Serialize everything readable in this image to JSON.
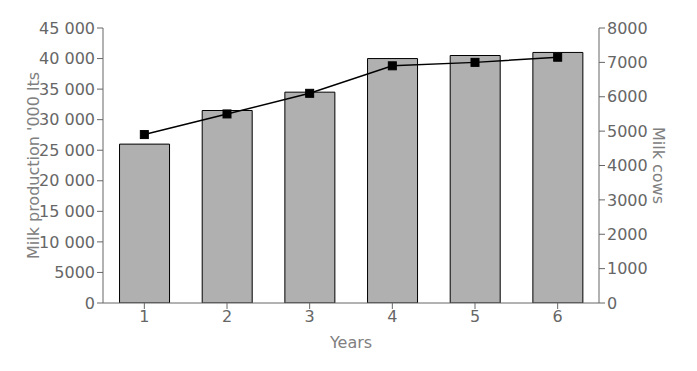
{
  "chart_data": {
    "type": "bar",
    "xlabel": "Years",
    "ylabel": "Milk production '000 lts",
    "y2label": "Milk cows",
    "categories": [
      "1",
      "2",
      "3",
      "4",
      "5",
      "6"
    ],
    "series": [
      {
        "type": "bar",
        "color": "#b0b0b0",
        "values": [
          26000,
          31500,
          34500,
          40000,
          40500,
          41000
        ]
      },
      {
        "type": "line",
        "color": "#000000",
        "marker": "square",
        "axis": "y2",
        "values": [
          4900,
          5500,
          6100,
          6900,
          7000,
          7150
        ]
      }
    ],
    "ylim": [
      0,
      45000
    ],
    "yticks": [
      0,
      5000,
      {
        "value": 10000,
        "label": "10 000"
      },
      {
        "value": 15000,
        "label": "15 000"
      },
      {
        "value": 20000,
        "label": "20 000"
      },
      {
        "value": 25000,
        "label": "25 000"
      },
      {
        "value": 30000,
        "label": "30 000"
      },
      {
        "value": 35000,
        "label": "35 000"
      },
      {
        "value": 40000,
        "label": "40 000"
      },
      {
        "value": 45000,
        "label": "45 000"
      }
    ],
    "y2lim": [
      0,
      8000
    ],
    "y2ticks": [
      0,
      1000,
      2000,
      3000,
      4000,
      5000,
      6000,
      7000,
      8000
    ],
    "grid": false
  }
}
